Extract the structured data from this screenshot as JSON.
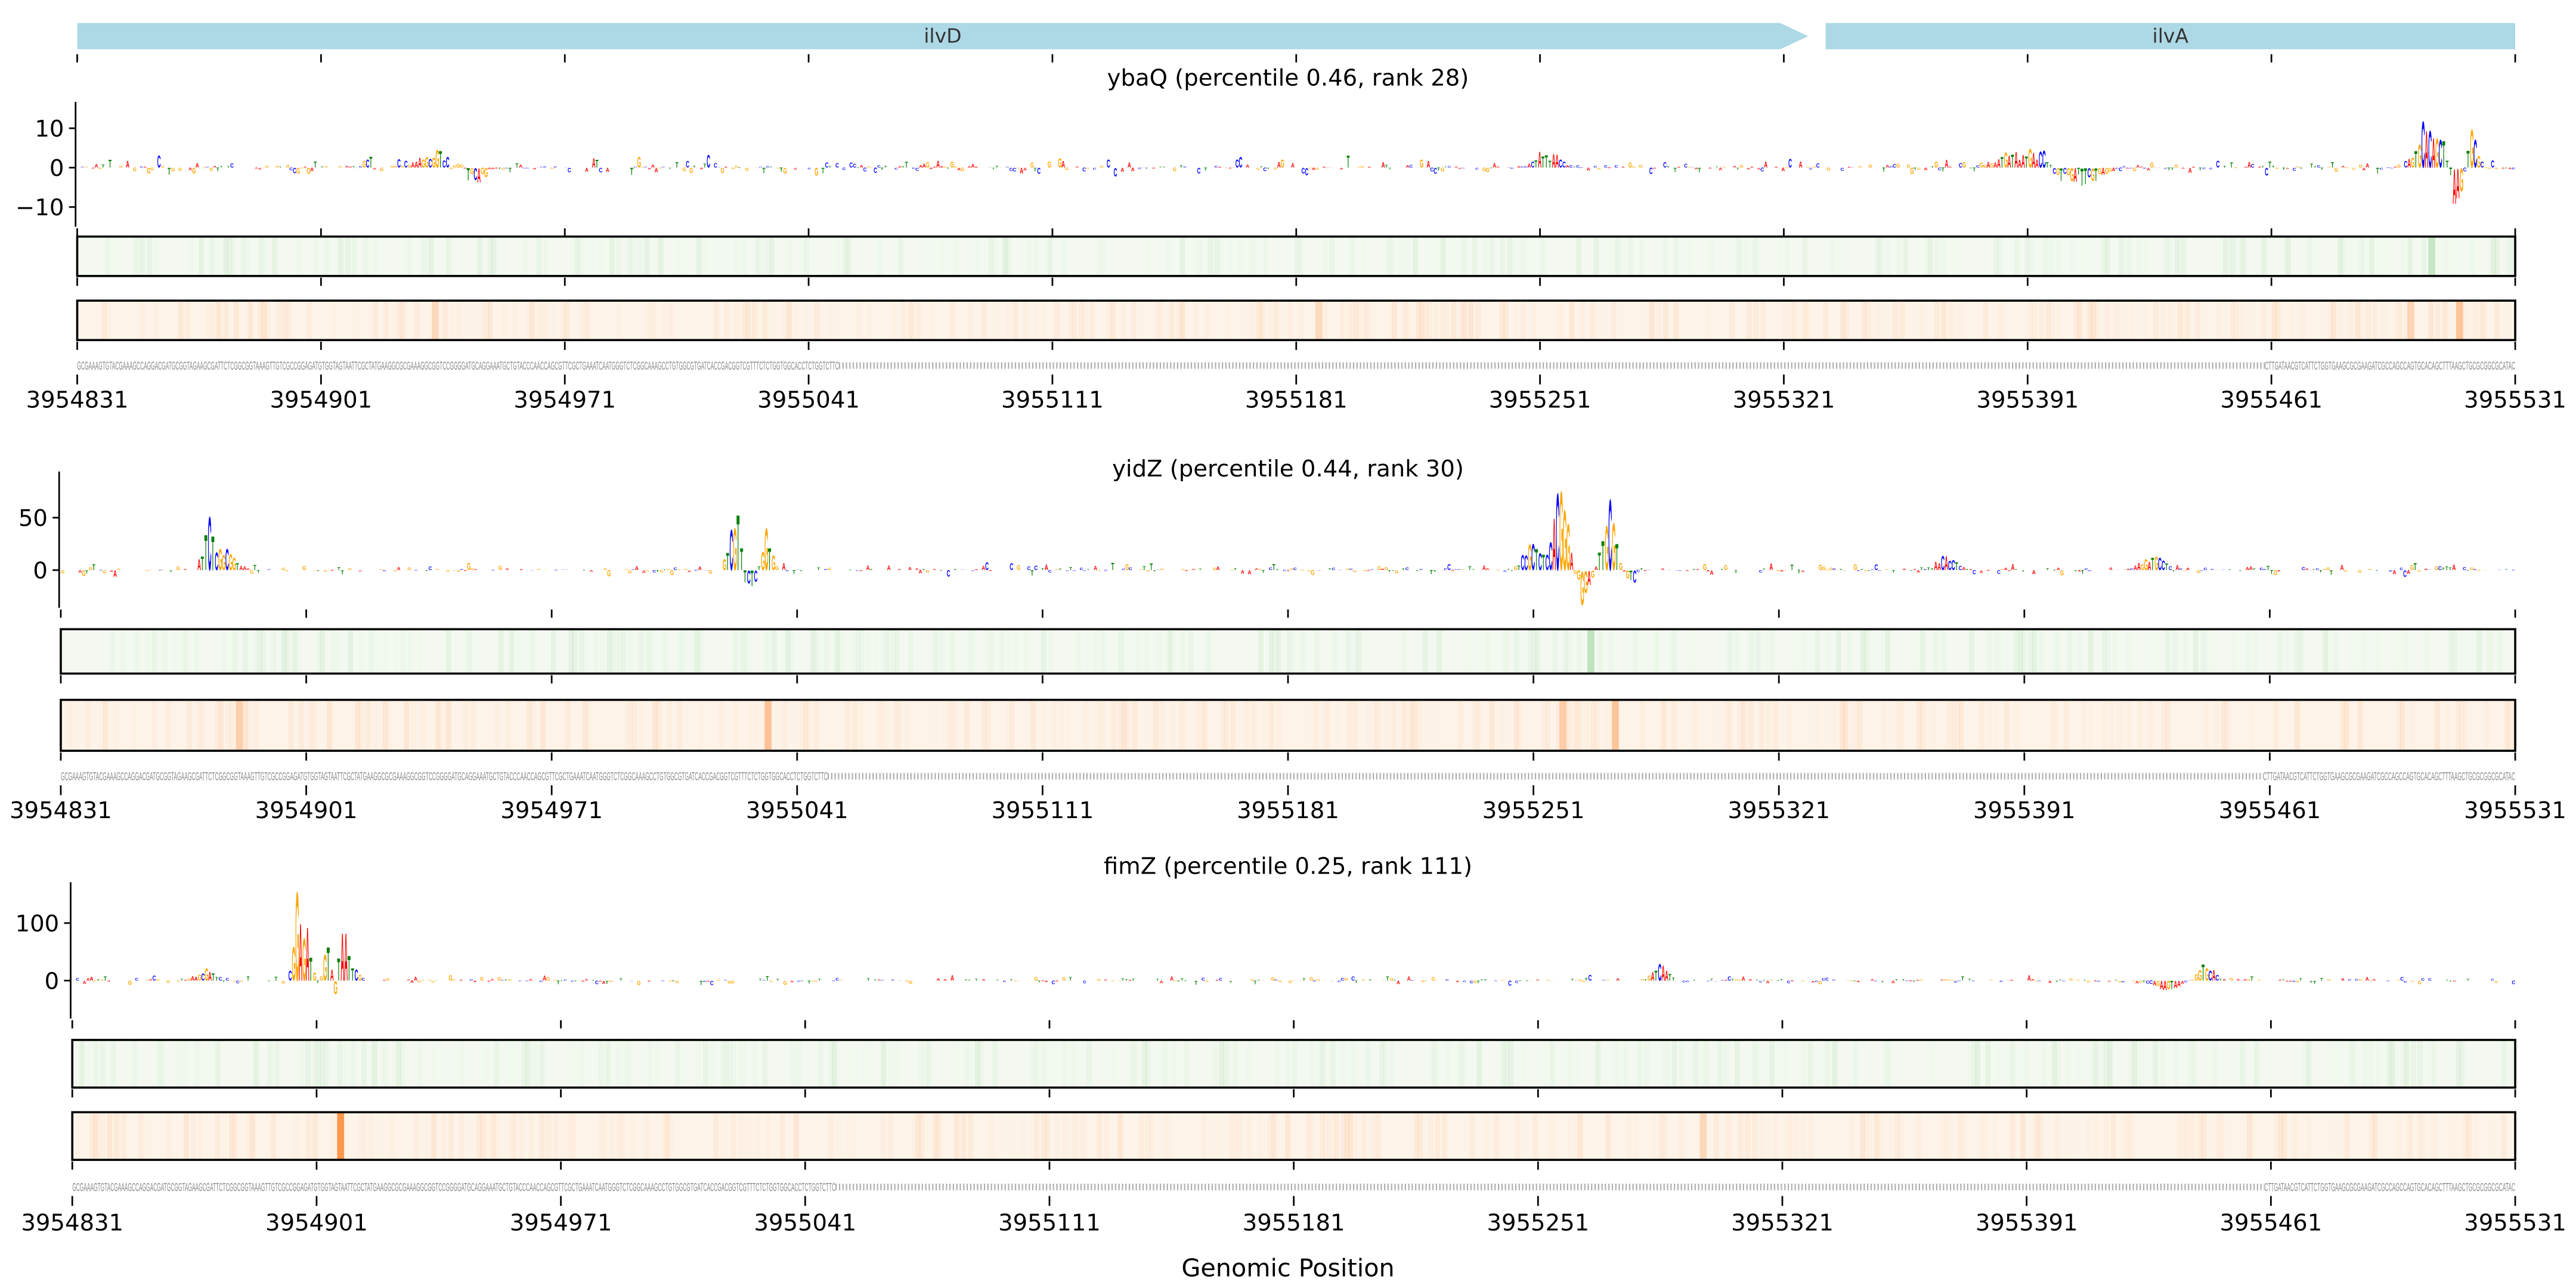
{
  "gene_track": {
    "genes": [
      {
        "name": "ilvD",
        "start_bp": 3954831,
        "end_bp": 3955328,
        "strand": "+",
        "color": "#add8e6"
      },
      {
        "name": "ilvA",
        "start_bp": 3955333,
        "end_bp": 3955531,
        "strand": "+",
        "color": "#add8e6"
      }
    ]
  },
  "x_range": [
    3954831,
    3955531
  ],
  "x_ticks": [
    "3954831",
    "3954901",
    "3954971",
    "3955041",
    "3955111",
    "3955181",
    "3955251",
    "3955321",
    "3955391",
    "3955461",
    "3955531"
  ],
  "xlabel": "Genomic Position",
  "sequence": {
    "start": "GCGAAAGTGTACGAAAGCCAGGACGATGCGGTAGAAGCGATTCTCGGCGGTAAAGTTGTCGCCGGAGATGTGGTAGTAATTCGCTATGAAGGCGCGAAAGGCGGTCCGGGGATGCAGGAAATGCTGTACCCAACCAGCGTTCGCTGAAATCAATGGGTCTCGGCAAAGCCTGTGGCGTGATCACCGACGGTCGTTTCTCTGGTGGCACCTCTGGTCTTC",
    "end": "CTTGATAACGTCATTCTGGTGAAGCGCGAAGATCGCCAGCCAGTGCACAGCTTTAAGCTGCGCGGCGCATAC"
  },
  "colors": {
    "A": "#ff0000",
    "C": "#0000ff",
    "G": "#ffa500",
    "T": "#008000",
    "green_map": "#f3f9f0",
    "orange_map": "#fdf3e8"
  },
  "chart_data": [
    {
      "type": "sequence-logo",
      "title": "ybaQ (percentile 0.46, rank 28)",
      "ylim": [
        -15,
        16.7
      ],
      "yticks": [
        {
          "value": 10,
          "label": "10"
        },
        {
          "value": 0,
          "label": "0"
        },
        {
          "value": -10,
          "label": "−10"
        }
      ],
      "noise": 3,
      "peaks": [
        {
          "pos": 105,
          "height": 5,
          "width": 8
        },
        {
          "pos": 112,
          "height": -4,
          "width": 6
        },
        {
          "pos": 422,
          "height": 5,
          "width": 5
        },
        {
          "pos": 560,
          "height": 5,
          "width": 10
        },
        {
          "pos": 575,
          "height": -5,
          "width": 8
        },
        {
          "pos": 676,
          "height": 16,
          "width": 4
        },
        {
          "pos": 684,
          "height": -13,
          "width": 2
        },
        {
          "pos": 688,
          "height": 12,
          "width": 2
        }
      ],
      "green_highlights": [
        {
          "pos": 676,
          "intensity": 0.35
        }
      ],
      "orange_highlights": [
        {
          "pos": 102,
          "intensity": 0.25
        },
        {
          "pos": 356,
          "intensity": 0.25
        },
        {
          "pos": 670,
          "intensity": 0.3
        },
        {
          "pos": 684,
          "intensity": 0.45
        }
      ]
    },
    {
      "type": "sequence-logo",
      "title": "yidZ (percentile 0.44, rank 30)",
      "ylim": [
        -36,
        94
      ],
      "yticks": [
        {
          "value": 50,
          "label": "50"
        },
        {
          "value": 0,
          "label": "0"
        }
      ],
      "noise": 8,
      "peaks": [
        {
          "pos": 42,
          "height": 55,
          "width": 2
        },
        {
          "pos": 48,
          "height": 25,
          "width": 3
        },
        {
          "pos": 192,
          "height": 85,
          "width": 2
        },
        {
          "pos": 201,
          "height": 45,
          "width": 2
        },
        {
          "pos": 196,
          "height": -20,
          "width": 4
        },
        {
          "pos": 420,
          "height": 40,
          "width": 3
        },
        {
          "pos": 428,
          "height": 85,
          "width": 3
        },
        {
          "pos": 434,
          "height": -35,
          "width": 3
        },
        {
          "pos": 442,
          "height": 75,
          "width": 3
        },
        {
          "pos": 447,
          "height": -15,
          "width": 3
        },
        {
          "pos": 538,
          "height": 15,
          "width": 4
        },
        {
          "pos": 598,
          "height": 15,
          "width": 5
        }
      ],
      "green_highlights": [
        {
          "pos": 436,
          "intensity": 0.4
        }
      ],
      "orange_highlights": [
        {
          "pos": 50,
          "intensity": 0.35
        },
        {
          "pos": 201,
          "intensity": 0.45
        },
        {
          "pos": 428,
          "intensity": 0.35
        },
        {
          "pos": 443,
          "intensity": 0.45
        }
      ]
    },
    {
      "type": "sequence-logo",
      "title": "fimZ (percentile 0.25, rank 111)",
      "ylim": [
        -66,
        171
      ],
      "yticks": [
        {
          "value": 100,
          "label": "100"
        },
        {
          "value": 0,
          "label": "0"
        }
      ],
      "noise": 10,
      "peaks": [
        {
          "pos": 38,
          "height": 20,
          "width": 4
        },
        {
          "pos": 64,
          "height": 170,
          "width": 1.5
        },
        {
          "pos": 67,
          "height": 110,
          "width": 1.5
        },
        {
          "pos": 73,
          "height": 80,
          "width": 1.5
        },
        {
          "pos": 75,
          "height": -65,
          "width": 1.2
        },
        {
          "pos": 77,
          "height": 115,
          "width": 1.5
        },
        {
          "pos": 80,
          "height": 40,
          "width": 2
        },
        {
          "pos": 455,
          "height": 35,
          "width": 3
        },
        {
          "pos": 600,
          "height": -20,
          "width": 5
        },
        {
          "pos": 612,
          "height": 35,
          "width": 3
        }
      ],
      "green_highlights": [],
      "orange_highlights": [
        {
          "pos": 76,
          "intensity": 0.9
        },
        {
          "pos": 467,
          "intensity": 0.25
        }
      ]
    }
  ]
}
